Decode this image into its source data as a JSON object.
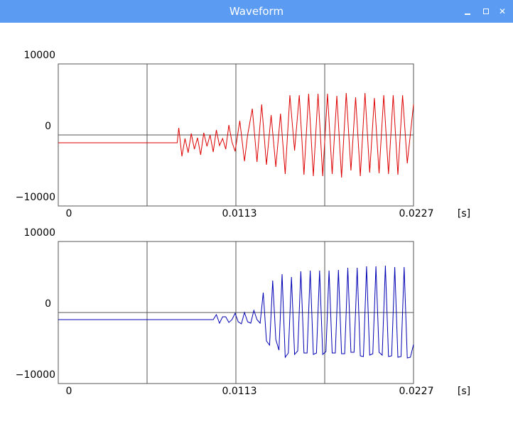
{
  "window": {
    "title": "Waveform",
    "minimize_icon": "minimize-icon",
    "maximize_icon": "maximize-icon",
    "close_icon": "close-icon"
  },
  "plots": {
    "y_top_label": "10000",
    "y_mid_label": "0",
    "y_bottom_label": "−10000",
    "x_start_label": "0",
    "x_mid_label": "0.0113",
    "x_end_label": "0.0227",
    "x_unit": "[s]"
  },
  "colors": {
    "titlebar": "#5b9cf2",
    "raw_waveform": "#dd0000",
    "filtered_waveform": "#0000b4",
    "axis": "#555555"
  },
  "chart_data": [
    {
      "type": "line",
      "title": "",
      "xlabel": "[s]",
      "ylabel": "",
      "xlim": [
        0,
        0.0227
      ],
      "ylim": [
        -10000,
        10000
      ],
      "x_ticks": [
        "0",
        "0.0113",
        "0.0227"
      ],
      "y_ticks": [
        "10000",
        "0",
        "−10000"
      ],
      "grid": true,
      "series": [
        {
          "color": "#dd0000",
          "x": [
            0,
            0.0076,
            0.0077,
            0.0079,
            0.0081,
            0.0083,
            0.0085,
            0.0087,
            0.0089,
            0.0091,
            0.0093,
            0.0095,
            0.0097,
            0.0099,
            0.0101,
            0.0103,
            0.0105,
            0.0107,
            0.0109,
            0.0111,
            0.0113,
            0.0116,
            0.0119,
            0.0121,
            0.0124,
            0.0127,
            0.013,
            0.0133,
            0.0136,
            0.0139,
            0.0142,
            0.0145,
            0.0148,
            0.0151,
            0.0154,
            0.0157,
            0.016,
            0.0163,
            0.0166,
            0.0169,
            0.0172,
            0.0175,
            0.0178,
            0.0181,
            0.0184,
            0.0187,
            0.019,
            0.0193,
            0.0196,
            0.0199,
            0.0202,
            0.0205,
            0.0208,
            0.0211,
            0.0214,
            0.0217,
            0.022,
            0.0223,
            0.0227
          ],
          "y": [
            -1100,
            -1100,
            1000,
            -3000,
            -500,
            -2500,
            200,
            -2000,
            -400,
            -2800,
            300,
            -1600,
            0,
            -2400,
            700,
            -1500,
            -500,
            -2000,
            1400,
            -1000,
            -2300,
            2000,
            -3700,
            0,
            3700,
            -3800,
            4300,
            -4200,
            2800,
            -4500,
            3000,
            -5500,
            5600,
            -2200,
            5600,
            -5600,
            5800,
            -5800,
            5800,
            -5800,
            5800,
            -5500,
            5500,
            -6000,
            5900,
            -5000,
            5300,
            -5800,
            5900,
            -5300,
            5200,
            -5400,
            5600,
            -5500,
            5600,
            -5600,
            5600,
            -4000,
            4300
          ]
        }
      ]
    },
    {
      "type": "line",
      "title": "",
      "xlabel": "[s]",
      "ylabel": "",
      "xlim": [
        0,
        0.0227
      ],
      "ylim": [
        -10000,
        10000
      ],
      "x_ticks": [
        "0",
        "0.0113",
        "0.0227"
      ],
      "y_ticks": [
        "10000",
        "0",
        "−10000"
      ],
      "grid": true,
      "series": [
        {
          "color": "#0000b4",
          "x": [
            0,
            0.0093,
            0.0097,
            0.0099,
            0.0101,
            0.0103,
            0.0105,
            0.0107,
            0.0109,
            0.0111,
            0.0113,
            0.0115,
            0.0117,
            0.0119,
            0.0121,
            0.0123,
            0.0125,
            0.0127,
            0.0129,
            0.0131,
            0.0133,
            0.0135,
            0.0137,
            0.0139,
            0.0141,
            0.0143,
            0.0145,
            0.0147,
            0.0149,
            0.0151,
            0.0153,
            0.0155,
            0.0157,
            0.0159,
            0.0161,
            0.0163,
            0.0165,
            0.0167,
            0.0169,
            0.0171,
            0.0173,
            0.0175,
            0.0177,
            0.0179,
            0.0181,
            0.0183,
            0.0185,
            0.0187,
            0.0189,
            0.0191,
            0.0193,
            0.0195,
            0.0197,
            0.0199,
            0.0201,
            0.0203,
            0.0205,
            0.0207,
            0.0209,
            0.0211,
            0.0213,
            0.0215,
            0.0217,
            0.0219,
            0.0221,
            0.0223,
            0.0225,
            0.0227
          ],
          "y": [
            -1000,
            -1000,
            -1000,
            -1000,
            -300,
            -1500,
            -600,
            -600,
            -1400,
            -1000,
            -100,
            -1300,
            -1600,
            0,
            -1300,
            -1500,
            300,
            -1000,
            -1500,
            2800,
            -4000,
            -4600,
            4500,
            -3800,
            -5300,
            5400,
            -6300,
            -5700,
            5000,
            -5900,
            -5400,
            5800,
            -5700,
            -5700,
            5900,
            -5900,
            -5700,
            5900,
            -5900,
            -5500,
            5900,
            -5700,
            -5700,
            6000,
            -5800,
            -5800,
            6300,
            -5600,
            -5600,
            6300,
            -6100,
            -6200,
            6500,
            -6000,
            -5800,
            6500,
            -5600,
            -6000,
            6600,
            -6200,
            -6100,
            6400,
            -6300,
            -6200,
            6400,
            -6400,
            -6300,
            -4500
          ]
        }
      ]
    }
  ]
}
